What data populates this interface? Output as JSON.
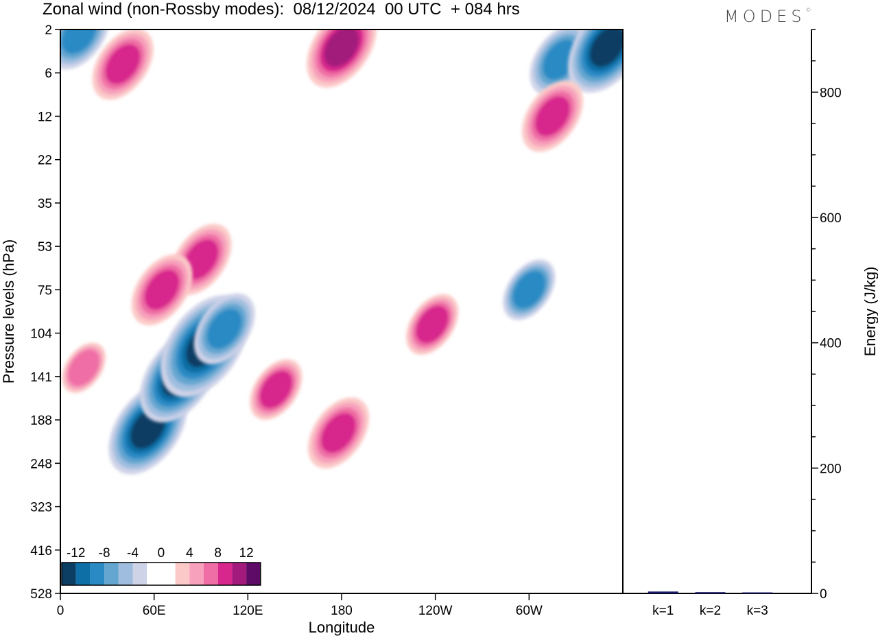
{
  "title": "Zonal wind (non-Rossby modes):  08/12/2024  00 UTC  + 084 hrs",
  "logo_text": "MODES",
  "logo_mark": "©",
  "chart_data": [
    {
      "type": "heatmap",
      "xlabel": "Longitude",
      "ylabel": "Pressure levels (hPa)",
      "x_tick_labels": [
        "0",
        "60E",
        "120E",
        "180",
        "120W",
        "60W"
      ],
      "x_tick_degrees": [
        0,
        60,
        120,
        180,
        240,
        300
      ],
      "x_range": [
        0,
        360
      ],
      "y_tick_labels": [
        "2",
        "6",
        "12",
        "22",
        "35",
        "53",
        "75",
        "104",
        "141",
        "188",
        "248",
        "323",
        "416",
        "528"
      ],
      "y_scale": "level-index",
      "colorbar": {
        "labels": [
          "-12",
          "-8",
          "-4",
          "0",
          "4",
          "8",
          "12"
        ],
        "colors": [
          "#0c3d63",
          "#0e6ea6",
          "#2a8ac4",
          "#64a6d0",
          "#9fbedf",
          "#cfd3e8",
          "#ffffff",
          "#ffffff",
          "#fbc9c7",
          "#f7a1bc",
          "#ef6ea5",
          "#d7268c",
          "#a21a7c",
          "#5e0a67"
        ]
      },
      "features": [
        {
          "sign": "negative",
          "lon": 56,
          "level": 9.2,
          "magnitude": 12
        },
        {
          "sign": "negative",
          "lon": 76,
          "level": 8.0,
          "magnitude": 12
        },
        {
          "sign": "negative",
          "lon": 92,
          "level": 7.3,
          "magnitude": 14
        },
        {
          "sign": "negative",
          "lon": 105,
          "level": 6.9,
          "magnitude": 8
        },
        {
          "sign": "negative",
          "lon": 300,
          "level": 6.0,
          "magnitude": 6
        },
        {
          "sign": "negative",
          "lon": 320,
          "level": 0.7,
          "magnitude": 8
        },
        {
          "sign": "negative",
          "lon": 350,
          "level": 0.4,
          "magnitude": 12
        },
        {
          "sign": "negative",
          "lon": 12,
          "level": 0.1,
          "magnitude": 8
        },
        {
          "sign": "positive",
          "lon": 40,
          "level": 0.8,
          "magnitude": 8
        },
        {
          "sign": "positive",
          "lon": 90,
          "level": 5.3,
          "magnitude": 8
        },
        {
          "sign": "positive",
          "lon": 65,
          "level": 6.0,
          "magnitude": 8
        },
        {
          "sign": "positive",
          "lon": 178,
          "level": 9.3,
          "magnitude": 8
        },
        {
          "sign": "positive",
          "lon": 138,
          "level": 8.3,
          "magnitude": 6
        },
        {
          "sign": "positive",
          "lon": 180,
          "level": 0.4,
          "magnitude": 10
        },
        {
          "sign": "positive",
          "lon": 315,
          "level": 2.0,
          "magnitude": 8
        },
        {
          "sign": "positive",
          "lon": 238,
          "level": 6.8,
          "magnitude": 6
        },
        {
          "sign": "positive",
          "lon": 15,
          "level": 7.8,
          "magnitude": 4
        }
      ]
    },
    {
      "type": "bar",
      "categories": [
        "k=1",
        "k=2",
        "k=3"
      ],
      "values": [
        3,
        2,
        1.5
      ],
      "ylabel": "Energy (J/kg)",
      "y_ticks": [
        "0",
        "200",
        "400",
        "600",
        "800"
      ],
      "ylim": [
        0,
        900
      ],
      "bar_color": "#1a1a6e"
    }
  ]
}
